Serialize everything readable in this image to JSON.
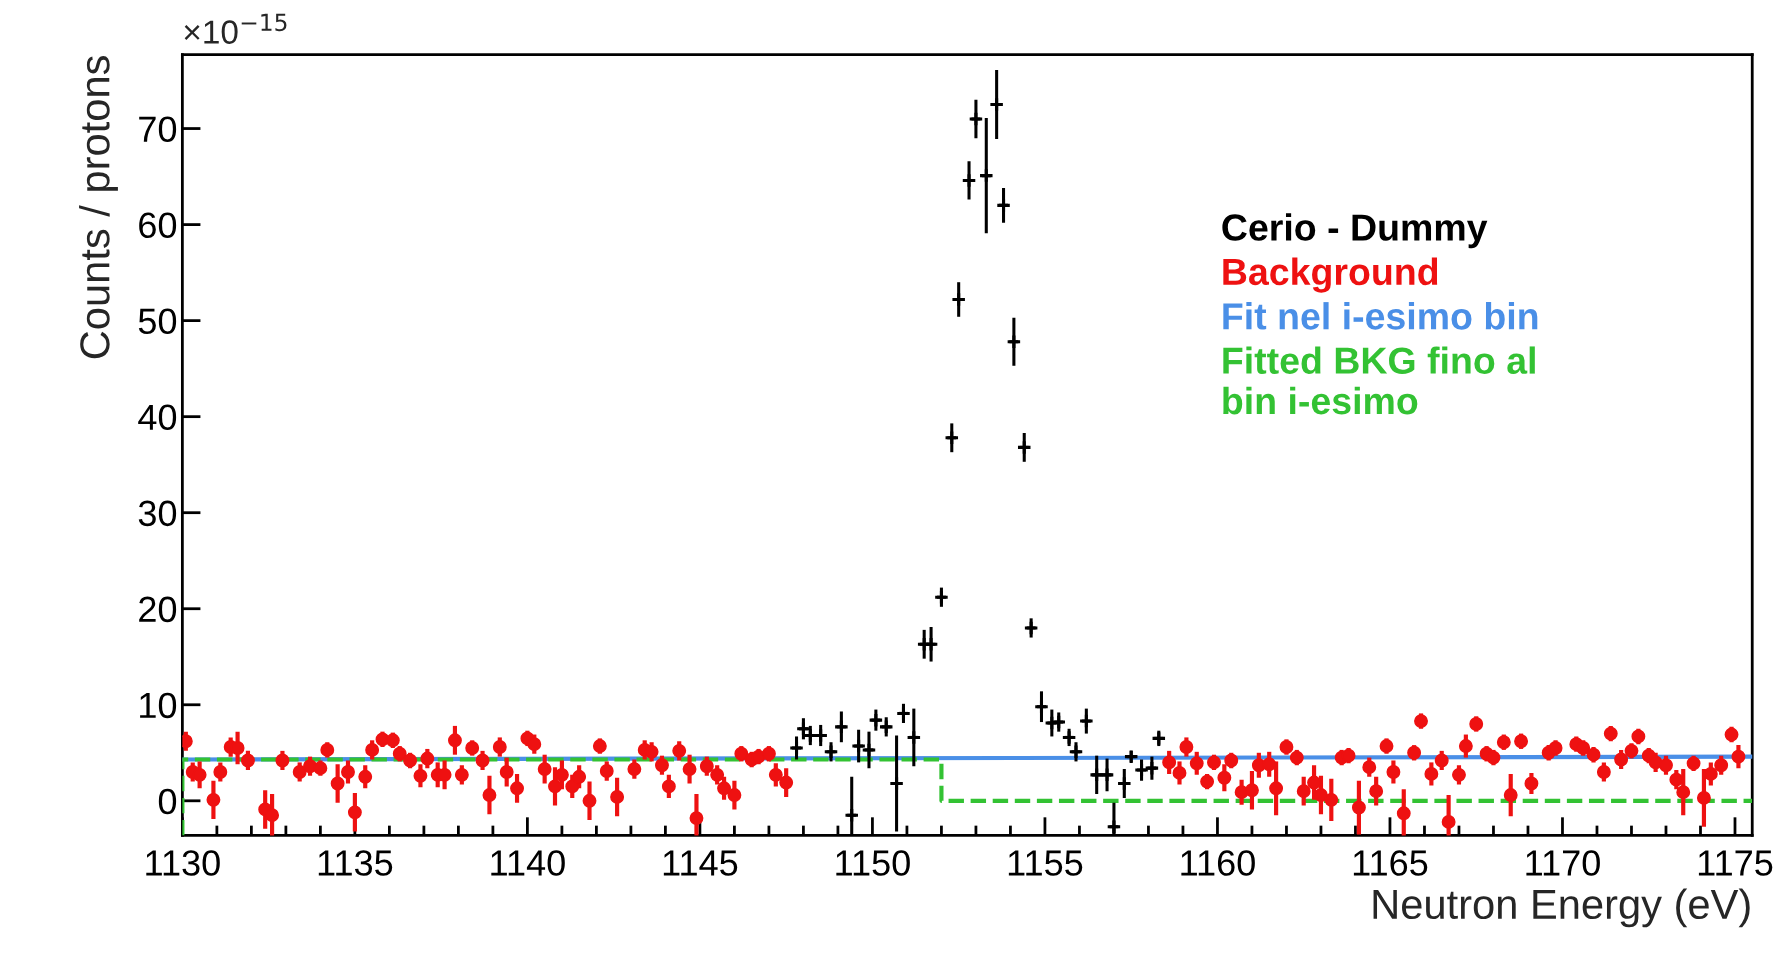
{
  "chart_data": {
    "type": "scatter",
    "xlabel": "Neutron Energy (eV)",
    "ylabel": "Counts / protons",
    "annotations": [
      "×10$^{−15}$"
    ],
    "xlim": [
      1130,
      1175.5
    ],
    "xticks": [
      1130,
      {
        "value": 1131,
        "label": null
      },
      {
        "value": 1132,
        "label": null
      },
      {
        "value": 1133,
        "label": null
      },
      {
        "value": 1134,
        "label": null
      },
      1135,
      {
        "value": 1136,
        "label": null
      },
      {
        "value": 1137,
        "label": null
      },
      {
        "value": 1138,
        "label": null
      },
      {
        "value": 1139,
        "label": null
      },
      1140,
      {
        "value": 1141,
        "label": null
      },
      {
        "value": 1142,
        "label": null
      },
      {
        "value": 1143,
        "label": null
      },
      {
        "value": 1144,
        "label": null
      },
      1145,
      {
        "value": 1146,
        "label": null
      },
      {
        "value": 1147,
        "label": null
      },
      {
        "value": 1148,
        "label": null
      },
      {
        "value": 1149,
        "label": null
      },
      1150,
      {
        "value": 1151,
        "label": null
      },
      {
        "value": 1152,
        "label": null
      },
      {
        "value": 1153,
        "label": null
      },
      {
        "value": 1154,
        "label": null
      },
      1155,
      {
        "value": 1156,
        "label": null
      },
      {
        "value": 1157,
        "label": null
      },
      {
        "value": 1158,
        "label": null
      },
      {
        "value": 1159,
        "label": null
      },
      1160,
      {
        "value": 1161,
        "label": null
      },
      {
        "value": 1162,
        "label": null
      },
      {
        "value": 1163,
        "label": null
      },
      {
        "value": 1164,
        "label": null
      },
      1165,
      {
        "value": 1166,
        "label": null
      },
      {
        "value": 1167,
        "label": null
      },
      {
        "value": 1168,
        "label": null
      },
      {
        "value": 1169,
        "label": null
      },
      1170,
      {
        "value": 1171,
        "label": null
      },
      {
        "value": 1172,
        "label": null
      },
      {
        "value": 1173,
        "label": null
      },
      {
        "value": 1174,
        "label": null
      },
      1175
    ],
    "ylim": [
      -3.6,
      77.7
    ],
    "yticks": [
      0,
      10,
      20,
      30,
      40,
      50,
      60,
      70
    ],
    "grid": false,
    "legend": "right",
    "series": [
      {
        "name": "Cerio - Dummy",
        "color": "#000000",
        "marker": "cross",
        "x": [
          1147.8,
          1148.0,
          1148.2,
          1148.5,
          1148.8,
          1149.1,
          1149.4,
          1149.6,
          1149.9,
          1150.1,
          1150.4,
          1150.7,
          1150.9,
          1151.2,
          1151.5,
          1151.7,
          1152.0,
          1152.3,
          1152.5,
          1152.8,
          1153.0,
          1153.3,
          1153.6,
          1153.8,
          1154.1,
          1154.4,
          1154.6,
          1154.9,
          1155.2,
          1155.4,
          1155.7,
          1155.9,
          1156.2,
          1156.5,
          1156.8,
          1157.0,
          1157.3,
          1157.5,
          1157.8,
          1158.1,
          1158.3
        ],
        "values": [
          5.5,
          7.5,
          6.8,
          6.8,
          5.1,
          7.7,
          -1.5,
          5.7,
          5.3,
          8.4,
          7.7,
          1.8,
          9.1,
          6.6,
          16.3,
          16.3,
          21.2,
          37.8,
          52.2,
          64.6,
          71.0,
          65.1,
          72.5,
          62.0,
          47.8,
          36.8,
          18.0,
          9.8,
          8.1,
          8.2,
          6.6,
          5.1,
          8.3,
          2.7,
          2.7,
          -2.7,
          1.8,
          4.6,
          3.2,
          3.4,
          6.5
        ],
        "errors": [
          1.2,
          1.1,
          1.0,
          1.1,
          1.0,
          1.6,
          4.0,
          1.7,
          1.9,
          1.1,
          1.0,
          5.0,
          1.0,
          3.0,
          1.5,
          1.8,
          1.0,
          1.5,
          1.8,
          2.0,
          2.0,
          6.0,
          3.6,
          1.8,
          2.5,
          1.5,
          1.0,
          1.6,
          1.4,
          1.0,
          0.9,
          1.0,
          1.3,
          2.0,
          1.7,
          2.5,
          1.5,
          0.6,
          1.1,
          1.2,
          0.8
        ],
        "xerrors": [
          0.13,
          0.13,
          0.13,
          0.13,
          0.13,
          0.13,
          0.13,
          0.13,
          0.13,
          0.13,
          0.13,
          0.13,
          0.13,
          0.13,
          0.13,
          0.13,
          0.13,
          0.13,
          0.13,
          0.13,
          0.13,
          0.13,
          0.13,
          0.13,
          0.13,
          0.13,
          0.13,
          0.13,
          0.13,
          0.13,
          0.13,
          0.13,
          0.13,
          0.13,
          0.13,
          0.13,
          0.13,
          0.13,
          0.13,
          0.13,
          0.13
        ]
      },
      {
        "name": "Background",
        "color": "#ee1111",
        "marker": "circle",
        "x": [
          1130.1,
          1130.3,
          1130.5,
          1130.9,
          1131.1,
          1131.4,
          1131.6,
          1131.9,
          1132.4,
          1132.6,
          1132.9,
          1133.4,
          1133.7,
          1134.0,
          1134.2,
          1134.5,
          1134.8,
          1135.0,
          1135.3,
          1135.5,
          1135.8,
          1136.1,
          1136.3,
          1136.6,
          1136.9,
          1137.1,
          1137.4,
          1137.6,
          1137.9,
          1138.1,
          1138.4,
          1138.7,
          1138.9,
          1139.2,
          1139.4,
          1139.7,
          1140.0,
          1140.2,
          1140.5,
          1140.8,
          1141.0,
          1141.3,
          1141.5,
          1141.8,
          1142.1,
          1142.3,
          1142.6,
          1143.1,
          1143.4,
          1143.6,
          1143.9,
          1144.1,
          1144.4,
          1144.7,
          1144.9,
          1145.2,
          1145.5,
          1145.7,
          1146.0,
          1146.2,
          1146.5,
          1146.7,
          1147.0,
          1147.2,
          1147.5,
          1158.6,
          1158.9,
          1159.1,
          1159.4,
          1159.7,
          1159.9,
          1160.2,
          1160.4,
          1160.7,
          1161.0,
          1161.2,
          1161.5,
          1161.7,
          1162.0,
          1162.3,
          1162.5,
          1162.8,
          1163.0,
          1163.3,
          1163.6,
          1163.8,
          1164.1,
          1164.4,
          1164.6,
          1164.9,
          1165.1,
          1165.4,
          1165.7,
          1165.9,
          1166.2,
          1166.5,
          1166.7,
          1167.0,
          1167.2,
          1167.5,
          1167.8,
          1168.0,
          1168.3,
          1168.5,
          1168.8,
          1169.1,
          1169.6,
          1169.8,
          1170.4,
          1170.6,
          1170.9,
          1171.2,
          1171.4,
          1171.7,
          1172.0,
          1172.2,
          1172.5,
          1172.7,
          1173.0,
          1173.3,
          1173.5,
          1173.8,
          1174.1,
          1174.3,
          1174.6,
          1174.9,
          1175.1
        ],
        "values": [
          6.2,
          3.0,
          2.7,
          0.1,
          3.0,
          5.6,
          5.5,
          4.2,
          -0.9,
          -1.5,
          4.2,
          3.0,
          3.6,
          3.4,
          5.3,
          1.8,
          3.0,
          -1.2,
          2.5,
          5.3,
          6.4,
          6.3,
          4.9,
          4.2,
          2.6,
          4.4,
          2.7,
          2.7,
          6.3,
          2.7,
          5.5,
          4.2,
          0.6,
          5.6,
          3.0,
          1.3,
          6.5,
          5.9,
          3.3,
          1.5,
          2.7,
          1.5,
          2.5,
          0.0,
          5.7,
          3.1,
          0.4,
          3.3,
          5.3,
          5.1,
          3.7,
          1.5,
          5.2,
          3.3,
          -1.8,
          3.6,
          2.7,
          1.3,
          0.6,
          4.9,
          4.3,
          4.6,
          4.9,
          2.7,
          1.9,
          4.0,
          2.9,
          5.6,
          3.9,
          2.0,
          4.0,
          2.4,
          4.2,
          0.9,
          1.1,
          3.7,
          3.8,
          1.3,
          5.6,
          4.5,
          1.0,
          1.9,
          0.6,
          0.1,
          4.5,
          4.7,
          -0.7,
          3.5,
          1.0,
          5.7,
          3.0,
          -1.3,
          5.0,
          8.3,
          2.8,
          4.2,
          -2.2,
          2.7,
          5.7,
          8.0,
          4.9,
          4.5,
          6.1,
          0.6,
          6.2,
          1.8,
          5.0,
          5.5,
          5.9,
          5.5,
          4.8,
          3.0,
          7.0,
          4.3,
          5.2,
          6.7,
          4.7,
          4.0,
          3.7,
          2.2,
          0.9,
          3.9,
          0.3,
          2.8,
          3.7,
          6.9,
          4.6
        ],
        "errors": [
          1.0,
          1.0,
          1.4,
          2.0,
          1.0,
          1.0,
          1.7,
          1.0,
          2.0,
          2.2,
          1.0,
          1.0,
          1.0,
          0.8,
          0.8,
          2.0,
          1.2,
          2.0,
          1.2,
          1.0,
          0.8,
          0.8,
          0.8,
          0.8,
          1.2,
          1.0,
          1.3,
          1.5,
          1.5,
          1.0,
          0.8,
          1.0,
          2.0,
          1.0,
          1.5,
          1.5,
          0.8,
          1.0,
          1.5,
          2.0,
          1.5,
          1.2,
          1.2,
          2.0,
          0.8,
          1.0,
          2.0,
          1.0,
          1.0,
          1.0,
          1.0,
          1.2,
          1.0,
          1.5,
          2.5,
          1.0,
          1.0,
          1.2,
          1.5,
          0.8,
          0.8,
          0.8,
          0.8,
          1.2,
          1.5,
          1.2,
          1.2,
          1.0,
          1.2,
          0.8,
          0.8,
          1.4,
          0.8,
          1.3,
          2.0,
          1.3,
          1.3,
          2.8,
          0.8,
          0.8,
          1.5,
          1.8,
          2.0,
          2.2,
          0.8,
          0.8,
          2.8,
          1.0,
          1.5,
          0.8,
          1.2,
          2.5,
          0.8,
          0.8,
          1.2,
          1.0,
          2.8,
          1.0,
          1.2,
          0.8,
          0.8,
          0.8,
          0.8,
          2.2,
          0.8,
          1.1,
          0.8,
          0.8,
          0.8,
          0.8,
          0.8,
          1.0,
          0.8,
          1.0,
          0.8,
          0.8,
          0.8,
          1.0,
          1.0,
          1.0,
          2.4,
          0.8,
          3.0,
          1.2,
          1.0,
          0.8,
          1.2
        ]
      },
      {
        "name": "Fit nel i-esimo bin",
        "color": "#4a8fe7",
        "type": "line",
        "line_style": "solid",
        "x": [
          1130,
          1175.5
        ],
        "values": [
          4.3,
          4.6
        ]
      },
      {
        "name": "Fitted BKG fino al\nbin i-esimo",
        "color": "#33c233",
        "type": "line",
        "line_style": "dashed",
        "x": [
          1130,
          1130,
          1152,
          1152,
          1175.5
        ],
        "values": [
          -3.6,
          4.3,
          4.3,
          0,
          0
        ]
      }
    ]
  }
}
